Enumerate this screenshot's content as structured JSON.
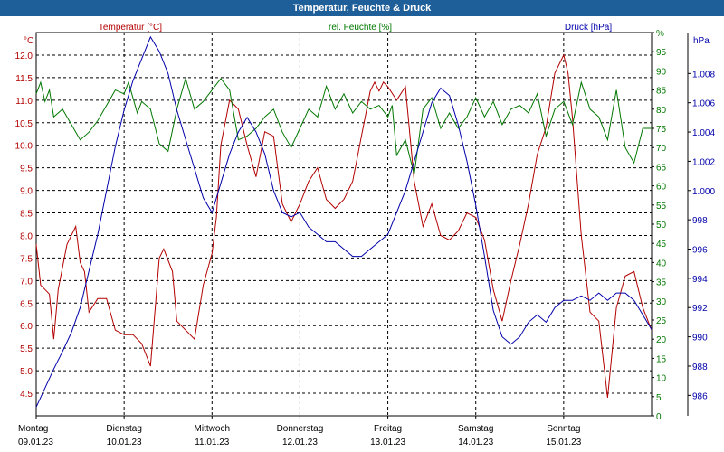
{
  "window": {
    "title": "Temperatur, Feuchte & Druck"
  },
  "colors": {
    "temperature": "#b30000",
    "humidity": "#007700",
    "pressure": "#0000aa",
    "titlebar": "#1f5f99",
    "grid": "#000000"
  },
  "chart_data": {
    "type": "line",
    "title": "Temperatur, Feuchte & Druck",
    "grid": true,
    "x": {
      "days": [
        {
          "weekday": "Montag",
          "date": "09.01.23"
        },
        {
          "weekday": "Dienstag",
          "date": "10.01.23"
        },
        {
          "weekday": "Mittwoch",
          "date": "11.01.23"
        },
        {
          "weekday": "Donnerstag",
          "date": "12.01.23"
        },
        {
          "weekday": "Freitag",
          "date": "13.01.23"
        },
        {
          "weekday": "Samstag",
          "date": "14.01.23"
        },
        {
          "weekday": "Sonntag",
          "date": "15.01.23"
        }
      ],
      "range": [
        0,
        7
      ]
    },
    "axes": {
      "temperature": {
        "unit": "°C",
        "range": [
          4,
          12.5
        ],
        "ticks": [
          "4.5",
          "5.0",
          "5.5",
          "6.0",
          "6.5",
          "7.0",
          "7.5",
          "8.0",
          "8.5",
          "9.0",
          "9.5",
          "10.0",
          "10.5",
          "11.0",
          "11.5",
          "12.0"
        ]
      },
      "humidity": {
        "unit": "%",
        "range": [
          0,
          100
        ],
        "ticks": [
          "0",
          "5",
          "10",
          "15",
          "20",
          "25",
          "30",
          "35",
          "40",
          "45",
          "50",
          "55",
          "60",
          "65",
          "70",
          "75",
          "80",
          "85",
          "90",
          "95",
          "%"
        ]
      },
      "pressure": {
        "unit": "hPa",
        "range": [
          984.6,
          1010.8
        ],
        "ticks": [
          "986",
          "988",
          "990",
          "992",
          "994",
          "996",
          "998",
          "1.000",
          "1.002",
          "1.004",
          "1.006",
          "1.008"
        ]
      }
    },
    "series": [
      {
        "name": "Temperatur [°C]",
        "axis": "temperature",
        "x": [
          0.0,
          0.05,
          0.15,
          0.2,
          0.25,
          0.35,
          0.45,
          0.5,
          0.55,
          0.6,
          0.7,
          0.8,
          0.9,
          1.0,
          1.1,
          1.2,
          1.3,
          1.4,
          1.45,
          1.55,
          1.6,
          1.8,
          1.9,
          2.0,
          2.05,
          2.1,
          2.2,
          2.3,
          2.4,
          2.5,
          2.6,
          2.7,
          2.8,
          2.9,
          3.0,
          3.1,
          3.2,
          3.3,
          3.4,
          3.5,
          3.6,
          3.7,
          3.8,
          3.85,
          3.9,
          3.95,
          4.0,
          4.1,
          4.2,
          4.3,
          4.4,
          4.5,
          4.6,
          4.7,
          4.8,
          4.9,
          5.0,
          5.1,
          5.2,
          5.3,
          5.4,
          5.5,
          5.6,
          5.7,
          5.8,
          5.9,
          6.0,
          6.05,
          6.1,
          6.2,
          6.3,
          6.4,
          6.5,
          6.6,
          6.7,
          6.8,
          6.9,
          7.0
        ],
        "values": [
          7.8,
          6.9,
          6.7,
          5.7,
          6.8,
          7.8,
          8.2,
          7.4,
          7.2,
          6.3,
          6.6,
          6.6,
          5.9,
          5.8,
          5.8,
          5.6,
          5.1,
          7.5,
          7.7,
          7.2,
          6.1,
          5.7,
          6.9,
          7.6,
          8.4,
          10.0,
          11.0,
          10.8,
          10.0,
          9.3,
          10.3,
          10.2,
          8.7,
          8.3,
          8.7,
          9.2,
          9.5,
          8.8,
          8.6,
          8.8,
          9.2,
          10.2,
          11.2,
          11.4,
          11.2,
          11.4,
          11.3,
          11.0,
          11.3,
          9.2,
          8.2,
          8.7,
          8.0,
          7.9,
          8.1,
          8.5,
          8.4,
          7.9,
          6.8,
          6.1,
          7.0,
          7.8,
          8.7,
          9.8,
          10.4,
          11.6,
          12.0,
          11.6,
          10.6,
          8.0,
          6.3,
          6.1,
          4.4,
          6.4,
          7.1,
          7.2,
          6.4,
          5.9
        ]
      },
      {
        "name": "rel. Feuchte [%]",
        "axis": "humidity",
        "x": [
          0.0,
          0.05,
          0.1,
          0.15,
          0.2,
          0.3,
          0.4,
          0.5,
          0.6,
          0.7,
          0.8,
          0.9,
          1.0,
          1.05,
          1.15,
          1.2,
          1.3,
          1.4,
          1.5,
          1.6,
          1.7,
          1.8,
          1.9,
          2.0,
          2.1,
          2.2,
          2.3,
          2.4,
          2.5,
          2.6,
          2.7,
          2.8,
          2.9,
          3.0,
          3.1,
          3.2,
          3.3,
          3.4,
          3.5,
          3.6,
          3.7,
          3.8,
          3.9,
          4.0,
          4.05,
          4.1,
          4.2,
          4.3,
          4.4,
          4.5,
          4.6,
          4.7,
          4.8,
          4.9,
          5.0,
          5.1,
          5.2,
          5.3,
          5.4,
          5.5,
          5.6,
          5.7,
          5.8,
          5.9,
          6.0,
          6.1,
          6.2,
          6.3,
          6.4,
          6.5,
          6.6,
          6.7,
          6.8,
          6.9,
          7.0
        ],
        "values": [
          84,
          87,
          82,
          85,
          78,
          80,
          76,
          72,
          74,
          77,
          81,
          85,
          84,
          87,
          79,
          82,
          80,
          71,
          69,
          80,
          88,
          80,
          82,
          85,
          88,
          85,
          72,
          73,
          75,
          78,
          80,
          74,
          70,
          75,
          80,
          78,
          86,
          80,
          84,
          79,
          82,
          80,
          81,
          78,
          81,
          68,
          72,
          63,
          80,
          83,
          75,
          79,
          75,
          78,
          83,
          78,
          82,
          76,
          80,
          81,
          79,
          84,
          73,
          80,
          82,
          76,
          87,
          80,
          78,
          72,
          85,
          70,
          66,
          75,
          75
        ]
      },
      {
        "name": "Druck [hPa]",
        "axis": "pressure",
        "x": [
          0.0,
          0.1,
          0.2,
          0.3,
          0.4,
          0.5,
          0.6,
          0.7,
          0.8,
          0.9,
          1.0,
          1.1,
          1.2,
          1.3,
          1.4,
          1.5,
          1.6,
          1.7,
          1.8,
          1.9,
          2.0,
          2.1,
          2.2,
          2.3,
          2.4,
          2.5,
          2.6,
          2.7,
          2.8,
          2.9,
          3.0,
          3.1,
          3.2,
          3.3,
          3.4,
          3.5,
          3.6,
          3.7,
          3.8,
          3.9,
          4.0,
          4.1,
          4.2,
          4.3,
          4.4,
          4.5,
          4.6,
          4.7,
          4.8,
          4.9,
          5.0,
          5.1,
          5.2,
          5.3,
          5.4,
          5.5,
          5.6,
          5.7,
          5.8,
          5.9,
          6.0,
          6.1,
          6.2,
          6.3,
          6.4,
          6.5,
          6.6,
          6.7,
          6.8,
          6.9,
          7.0
        ],
        "values": [
          985.2,
          986.5,
          987.8,
          989.0,
          990.3,
          992.0,
          994.5,
          997.0,
          1000.0,
          1003.0,
          1005.5,
          1007.5,
          1009.0,
          1010.5,
          1009.5,
          1008.0,
          1005.5,
          1003.5,
          1001.5,
          999.5,
          998.5,
          1000.5,
          1002.5,
          1004.0,
          1005.0,
          1004.0,
          1002.5,
          1000.0,
          998.5,
          998.2,
          998.5,
          997.5,
          997.0,
          996.5,
          996.5,
          996.0,
          995.5,
          995.5,
          996.0,
          996.5,
          997.0,
          998.5,
          1000.0,
          1002.0,
          1004.0,
          1006.0,
          1007.0,
          1006.5,
          1004.5,
          1002.0,
          999.0,
          995.5,
          991.8,
          990.0,
          989.5,
          990.0,
          991.0,
          991.5,
          991.0,
          992.0,
          992.5,
          992.5,
          992.8,
          992.5,
          993.0,
          992.5,
          993.0,
          993.0,
          992.5,
          991.5,
          990.5
        ]
      }
    ]
  }
}
